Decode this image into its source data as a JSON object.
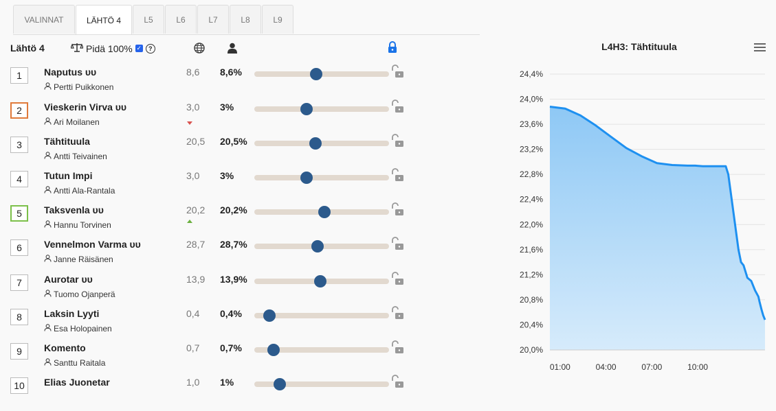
{
  "tabs": [
    {
      "label": "VALINNAT",
      "active": false
    },
    {
      "label": "LÄHTÖ 4",
      "active": true
    },
    {
      "label": "L5",
      "active": false
    },
    {
      "label": "L6",
      "active": false
    },
    {
      "label": "L7",
      "active": false
    },
    {
      "label": "L8",
      "active": false
    },
    {
      "label": "L9",
      "active": false
    }
  ],
  "header": {
    "title": "Lähtö 4",
    "keep_label": "Pidä 100%",
    "keep_checked": true,
    "help_icon": "question-circle-icon",
    "globe_icon": "globe-icon",
    "person_icon": "person-icon",
    "lock_icon": "lock-closed-icon",
    "lock_color": "#1a73e8"
  },
  "horses": [
    {
      "num": "1",
      "name": "Naputus ᴜᴜ",
      "driver": "Pertti Puikkonen",
      "odds": "8,6",
      "pct": "8,6%",
      "slider": 0.46,
      "trend": null,
      "num_style": "default"
    },
    {
      "num": "2",
      "name": "Vieskerin Virva ᴜᴜ",
      "driver": "Ari Moilanen",
      "odds": "3,0",
      "pct": "3%",
      "slider": 0.39,
      "trend": "down",
      "num_style": "orange"
    },
    {
      "num": "3",
      "name": "Tähtituula",
      "driver": "Antti Teivainen",
      "odds": "20,5",
      "pct": "20,5%",
      "slider": 0.455,
      "trend": null,
      "num_style": "default"
    },
    {
      "num": "4",
      "name": "Tutun Impi",
      "driver": "Antti Ala-Rantala",
      "odds": "3,0",
      "pct": "3%",
      "slider": 0.39,
      "trend": null,
      "num_style": "default"
    },
    {
      "num": "5",
      "name": "Taksvenla ᴜᴜ",
      "driver": "Hannu Torvinen",
      "odds": "20,2",
      "pct": "20,2%",
      "slider": 0.52,
      "trend": "up",
      "num_style": "green"
    },
    {
      "num": "6",
      "name": "Vennelmon Varma ᴜᴜ",
      "driver": "Janne Räisänen",
      "odds": "28,7",
      "pct": "28,7%",
      "slider": 0.47,
      "trend": null,
      "num_style": "default"
    },
    {
      "num": "7",
      "name": "Aurotar ᴜᴜ",
      "driver": "Tuomo Ojanperä",
      "odds": "13,9",
      "pct": "13,9%",
      "slider": 0.49,
      "trend": null,
      "num_style": "default"
    },
    {
      "num": "8",
      "name": "Laksin Lyyti",
      "driver": "Esa Holopainen",
      "odds": "0,4",
      "pct": "0,4%",
      "slider": 0.11,
      "trend": null,
      "num_style": "default"
    },
    {
      "num": "9",
      "name": "Komento",
      "driver": "Santtu Raitala",
      "odds": "0,7",
      "pct": "0,7%",
      "slider": 0.145,
      "trend": null,
      "num_style": "default"
    },
    {
      "num": "10",
      "name": "Elias Juonetar",
      "driver": "",
      "odds": "1,0",
      "pct": "1%",
      "slider": 0.19,
      "trend": null,
      "num_style": "default"
    }
  ],
  "row_icons": {
    "driver": "person-outline-icon",
    "lock": "lock-open-icon"
  },
  "colors": {
    "slider_track": "#e2d9cf",
    "slider_thumb": "#2c5a8c",
    "trend_down": "#d9534f",
    "trend_up": "#6cb040",
    "chart_line": "#1e90f0"
  },
  "chart": {
    "title": "L4H3: Tähtituula",
    "menu_icon": "hamburger-menu-icon"
  },
  "chart_data": {
    "type": "area",
    "title": "L4H3: Tähtituula",
    "xlabel": "",
    "ylabel": "",
    "x_ticks": [
      "01:00",
      "04:00",
      "07:00",
      "10:00"
    ],
    "y_ticks": [
      "20,0%",
      "20,4%",
      "20,8%",
      "21,2%",
      "21,6%",
      "22,0%",
      "22,4%",
      "22,8%",
      "23,2%",
      "23,6%",
      "24,0%",
      "24,4%"
    ],
    "ylim": [
      20.0,
      24.4
    ],
    "x_minutes_range": [
      0,
      844
    ],
    "grid": true,
    "series": [
      {
        "x": [
          0,
          60,
          120,
          180,
          240,
          300,
          360,
          420,
          480,
          540,
          570,
          600,
          630,
          660,
          690,
          700,
          720,
          730,
          740,
          750,
          760,
          775,
          790,
          805,
          818,
          822,
          830,
          837,
          844
        ],
        "y": [
          23.88,
          23.85,
          23.74,
          23.58,
          23.4,
          23.22,
          23.09,
          22.98,
          22.95,
          22.94,
          22.94,
          22.93,
          22.93,
          22.93,
          22.93,
          22.8,
          22.2,
          21.9,
          21.6,
          21.4,
          21.35,
          21.15,
          21.1,
          20.95,
          20.85,
          20.78,
          20.65,
          20.55,
          20.48
        ]
      }
    ]
  }
}
